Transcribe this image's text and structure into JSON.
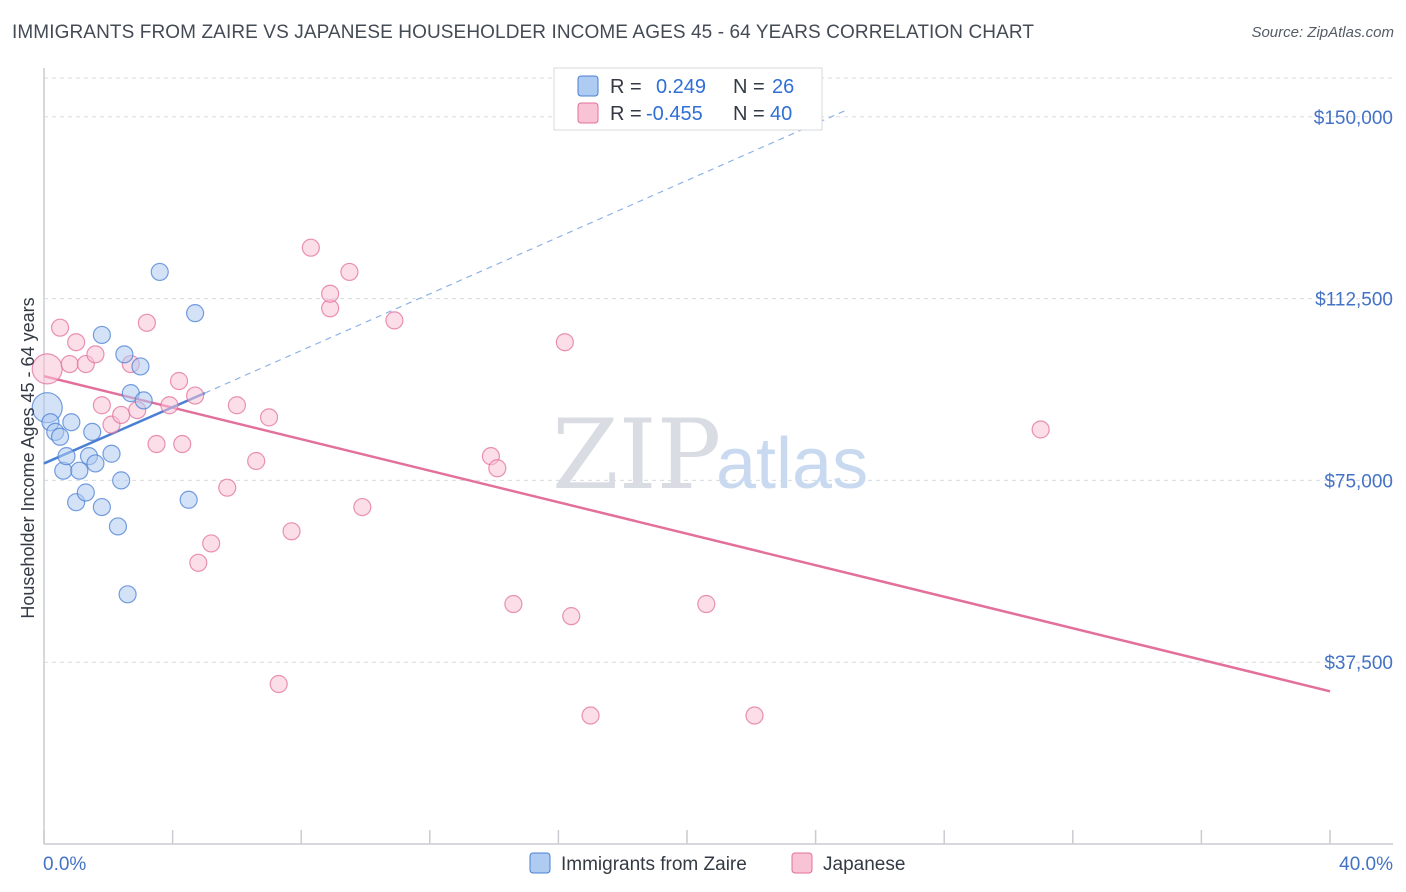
{
  "chart_data": {
    "type": "scatter",
    "title": "IMMIGRANTS FROM ZAIRE VS JAPANESE HOUSEHOLDER INCOME AGES 45 - 64 YEARS CORRELATION CHART",
    "source": "Source: ZipAtlas.com",
    "xlabel": "",
    "ylabel": "Householder Income Ages 45 - 64 years",
    "xlim": [
      0,
      40
    ],
    "ylim": [
      0,
      158000
    ],
    "x_tick_labels": {
      "left": "0.0%",
      "right": "40.0%"
    },
    "y_ticks": [
      {
        "value": 37500,
        "label": "$37,500"
      },
      {
        "value": 75000,
        "label": "$75,000"
      },
      {
        "value": 112500,
        "label": "$112,500"
      },
      {
        "value": 150000,
        "label": "$150,000"
      }
    ],
    "watermark": {
      "zip": "ZIP",
      "atlas": "atlas"
    },
    "legend": [
      {
        "r_label": "R =",
        "r_value": "0.249",
        "n_label": "N =",
        "n_value": "26"
      },
      {
        "r_label": "R =",
        "r_value": "-0.455",
        "n_label": "N =",
        "n_value": "40"
      }
    ],
    "series": [
      {
        "name": "Immigrants from Zaire",
        "color": "#4a7fd4",
        "fill": "#aecbf1",
        "trend": {
          "x0": 0.0,
          "y0": 78500,
          "x1": 5.0,
          "y1": 93000,
          "dash_to_x": 25.0,
          "dash_to_y": 151500
        },
        "points": [
          {
            "x": 0.1,
            "y": 90000,
            "big": true
          },
          {
            "x": 0.2,
            "y": 87000
          },
          {
            "x": 0.35,
            "y": 85000
          },
          {
            "x": 0.5,
            "y": 84000
          },
          {
            "x": 0.6,
            "y": 77000
          },
          {
            "x": 0.7,
            "y": 80000
          },
          {
            "x": 0.85,
            "y": 87000
          },
          {
            "x": 1.0,
            "y": 70500
          },
          {
            "x": 1.1,
            "y": 77000
          },
          {
            "x": 1.3,
            "y": 72500
          },
          {
            "x": 1.4,
            "y": 80000
          },
          {
            "x": 1.5,
            "y": 85000
          },
          {
            "x": 1.6,
            "y": 78500
          },
          {
            "x": 1.8,
            "y": 69500
          },
          {
            "x": 1.8,
            "y": 105000
          },
          {
            "x": 2.1,
            "y": 80500
          },
          {
            "x": 2.3,
            "y": 65500
          },
          {
            "x": 2.4,
            "y": 75000
          },
          {
            "x": 2.5,
            "y": 101000
          },
          {
            "x": 2.6,
            "y": 51500
          },
          {
            "x": 2.7,
            "y": 93000
          },
          {
            "x": 3.0,
            "y": 98500
          },
          {
            "x": 3.1,
            "y": 91500
          },
          {
            "x": 3.6,
            "y": 118000
          },
          {
            "x": 4.5,
            "y": 71000
          },
          {
            "x": 4.7,
            "y": 109500
          }
        ]
      },
      {
        "name": "Japanese",
        "color": "#e36f9b",
        "fill": "#f8c3d5",
        "trend": {
          "x0": 0.0,
          "y0": 96500,
          "x1": 40.0,
          "y1": 31500
        },
        "points": [
          {
            "x": 0.1,
            "y": 98000,
            "big": true
          },
          {
            "x": 0.5,
            "y": 106500
          },
          {
            "x": 0.8,
            "y": 99000
          },
          {
            "x": 1.0,
            "y": 103500
          },
          {
            "x": 1.3,
            "y": 99000
          },
          {
            "x": 1.6,
            "y": 101000
          },
          {
            "x": 1.8,
            "y": 90500
          },
          {
            "x": 2.1,
            "y": 86500
          },
          {
            "x": 2.4,
            "y": 88500
          },
          {
            "x": 2.7,
            "y": 99000
          },
          {
            "x": 2.9,
            "y": 89500
          },
          {
            "x": 3.2,
            "y": 107500
          },
          {
            "x": 3.5,
            "y": 82500
          },
          {
            "x": 3.9,
            "y": 90500
          },
          {
            "x": 4.2,
            "y": 95500
          },
          {
            "x": 4.3,
            "y": 82500
          },
          {
            "x": 4.7,
            "y": 92500
          },
          {
            "x": 4.8,
            "y": 58000
          },
          {
            "x": 5.2,
            "y": 62000
          },
          {
            "x": 5.7,
            "y": 73500
          },
          {
            "x": 6.0,
            "y": 90500
          },
          {
            "x": 6.6,
            "y": 79000
          },
          {
            "x": 7.0,
            "y": 88000
          },
          {
            "x": 7.3,
            "y": 33000
          },
          {
            "x": 7.7,
            "y": 64500
          },
          {
            "x": 8.3,
            "y": 123000
          },
          {
            "x": 8.9,
            "y": 110500
          },
          {
            "x": 8.9,
            "y": 113500
          },
          {
            "x": 9.5,
            "y": 118000
          },
          {
            "x": 9.9,
            "y": 69500
          },
          {
            "x": 10.9,
            "y": 108000
          },
          {
            "x": 13.9,
            "y": 80000
          },
          {
            "x": 14.1,
            "y": 77500
          },
          {
            "x": 14.6,
            "y": 49500
          },
          {
            "x": 16.2,
            "y": 103500
          },
          {
            "x": 16.4,
            "y": 47000
          },
          {
            "x": 17.0,
            "y": 26500
          },
          {
            "x": 20.6,
            "y": 49500
          },
          {
            "x": 22.1,
            "y": 26500
          },
          {
            "x": 31.0,
            "y": 85500
          }
        ]
      }
    ]
  }
}
